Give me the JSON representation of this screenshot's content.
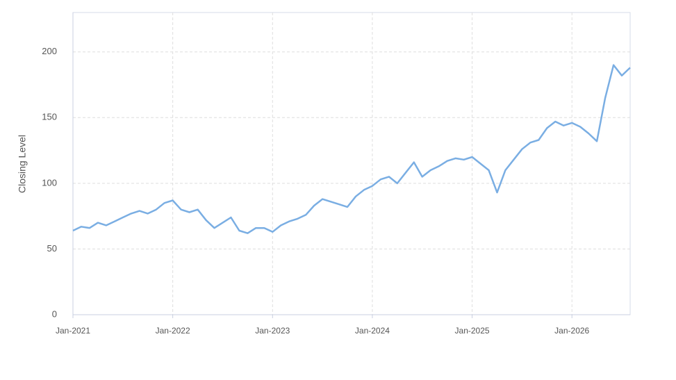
{
  "chart_data": {
    "type": "line",
    "y_label": "Closing Level",
    "x": [
      "2021-01",
      "2021-02",
      "2021-03",
      "2021-04",
      "2021-05",
      "2021-06",
      "2021-07",
      "2021-08",
      "2021-09",
      "2021-10",
      "2021-11",
      "2021-12",
      "2022-01",
      "2022-02",
      "2022-03",
      "2022-04",
      "2022-05",
      "2022-06",
      "2022-07",
      "2022-08",
      "2022-09",
      "2022-10",
      "2022-11",
      "2022-12",
      "2023-01",
      "2023-02",
      "2023-03",
      "2023-04",
      "2023-05",
      "2023-06",
      "2023-07",
      "2023-08",
      "2023-09",
      "2023-10",
      "2023-11",
      "2023-12",
      "2024-01",
      "2024-02",
      "2024-03",
      "2024-04",
      "2024-05",
      "2024-06",
      "2024-07",
      "2024-08",
      "2024-09",
      "2024-10",
      "2024-11",
      "2024-12",
      "2025-01",
      "2025-02",
      "2025-03",
      "2025-04",
      "2025-05",
      "2025-06",
      "2025-07",
      "2025-08",
      "2025-09",
      "2025-10",
      "2025-11",
      "2025-12",
      "2026-01",
      "2026-02",
      "2026-03",
      "2026-04",
      "2026-05",
      "2026-06",
      "2026-07",
      "2026-08"
    ],
    "values": [
      64,
      67,
      66,
      70,
      68,
      71,
      74,
      77,
      79,
      77,
      80,
      85,
      87,
      80,
      78,
      80,
      72,
      66,
      70,
      74,
      64,
      62,
      66,
      66,
      63,
      68,
      71,
      73,
      76,
      83,
      88,
      86,
      84,
      82,
      90,
      95,
      98,
      103,
      105,
      100,
      108,
      116,
      105,
      110,
      113,
      117,
      119,
      118,
      120,
      115,
      110,
      93,
      110,
      118,
      126,
      131,
      133,
      142,
      147,
      144,
      146,
      143,
      138,
      132,
      165,
      190,
      182,
      188
    ],
    "color": "#7aaee3",
    "xlim": [
      "2021-01",
      "2026-08"
    ],
    "xticks": [
      {
        "value": "2021-01",
        "label": "Jan-2021"
      },
      {
        "value": "2022-01",
        "label": "Jan-2022"
      },
      {
        "value": "2023-01",
        "label": "Jan-2023"
      },
      {
        "value": "2024-01",
        "label": "Jan-2024"
      },
      {
        "value": "2025-01",
        "label": "Jan-2025"
      },
      {
        "value": "2026-01",
        "label": "Jan-2026"
      }
    ],
    "ylim": [
      0,
      230
    ],
    "yticks": [
      0,
      50,
      100,
      150,
      200
    ],
    "grid": true
  }
}
